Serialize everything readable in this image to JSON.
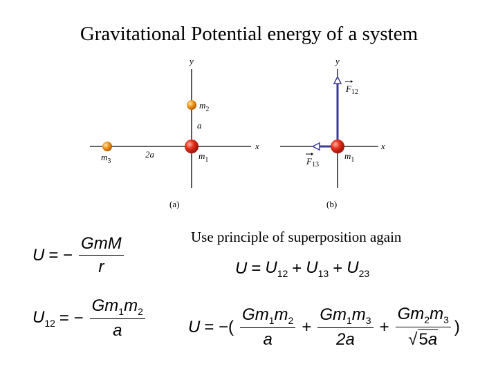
{
  "title": "Gravitational Potential energy of a system",
  "note": "Use principle of superposition again",
  "figure_a": {
    "caption": "(a)",
    "axis_y": "y",
    "axis_x": "x",
    "label_m1": "m",
    "label_m1_sub": "1",
    "label_m2": "m",
    "label_m2_sub": "2",
    "label_m3": "m",
    "label_m3_sub": "3",
    "label_a": "a",
    "label_2a": "2a"
  },
  "figure_b": {
    "caption": "(b)",
    "axis_y": "y",
    "axis_x": "x",
    "label_m1": "m",
    "label_m1_sub": "1",
    "label_f12": "F",
    "label_f12_sub": "12",
    "label_f13": "F",
    "label_f13_sub": "13"
  },
  "colors": {
    "large_mass": "#e8321e",
    "small_mass": "#f39a1e",
    "force_arrow": "#3a3a9a"
  },
  "eq1": {
    "lhs": "U",
    "num": "GmM",
    "den": "r"
  },
  "eq2": {
    "lhs": "U",
    "lhs_sub": "12",
    "num_g": "Gm",
    "num_s1": "1",
    "num_m": "m",
    "num_s2": "2",
    "den": "a"
  },
  "eq3": {
    "lhs": "U",
    "t1": "U",
    "t1_sub": "12",
    "t2": "U",
    "t2_sub": "13",
    "t3": "U",
    "t3_sub": "23"
  },
  "eq4": {
    "lhs": "U",
    "f1_num_g": "Gm",
    "f1_s1": "1",
    "f1_m": "m",
    "f1_s2": "2",
    "f1_den": "a",
    "f2_num_g": "Gm",
    "f2_s1": "1",
    "f2_m": "m",
    "f2_s2": "3",
    "f2_den": "2a",
    "f3_num_g": "Gm",
    "f3_s1": "2",
    "f3_m": "m",
    "f3_s2": "3",
    "f3_den_sqrt": "5",
    "f3_den_a": "a"
  }
}
